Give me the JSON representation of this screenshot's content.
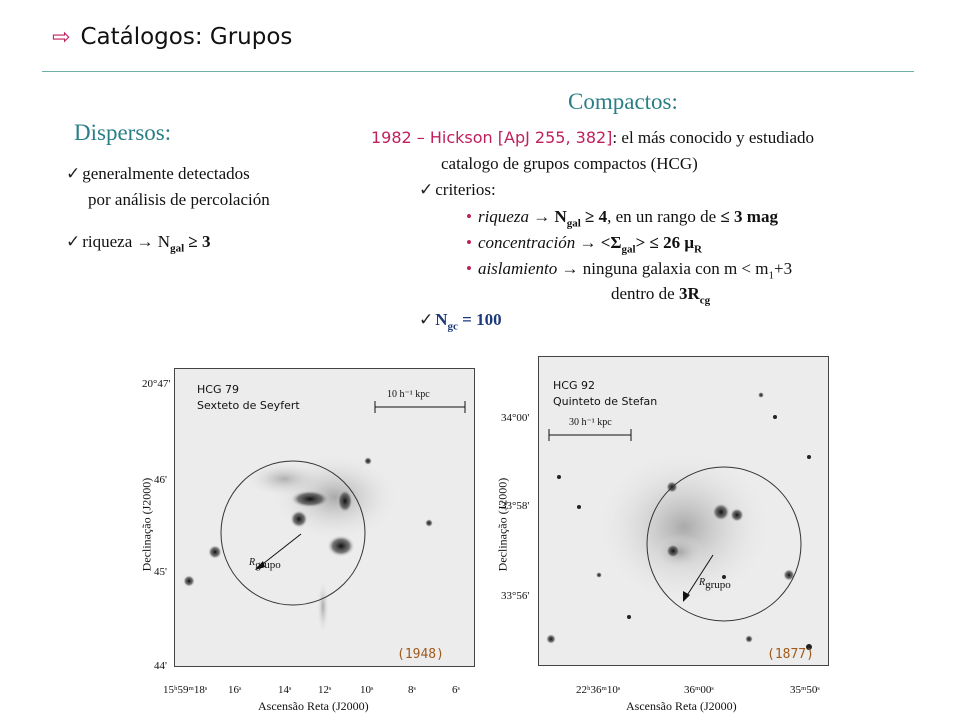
{
  "title": "Catálogos: Grupos",
  "dispersos": {
    "heading": "Dispersos:",
    "item1_line1": "generalmente  detectados",
    "item1_line2": "por análisis de percolación",
    "item2_text": "riqueza  →  N",
    "item2_sub": "gal",
    "item2_rel": " ≥ 3"
  },
  "compactos": {
    "heading": "Compactos:",
    "ref_year": "1982 – Hickson [ApJ 255, 382]",
    "ref_rest": ": el más conocido y estudiado",
    "line2": "catalogo de grupos compactos (HCG)",
    "criterios": "criterios:",
    "riqueza_label": "riqueza →",
    "riqueza_rest_a": " N",
    "riqueza_sub": "gal",
    "riqueza_rest_b": " ≥ 4",
    "riqueza_rest_c": ", en un rango de ",
    "riqueza_rest_d": "≤ 3 mag",
    "conc_label": "concentración →",
    "conc_a": " <Σ",
    "conc_sub": "gal",
    "conc_b": "> ≤ 26 μ",
    "conc_sub2": "R",
    "aisl_label": "aislamiento →",
    "aisl_a": " ninguna galaxia con m < m",
    "aisl_sub": "1",
    "aisl_b": "+3",
    "aisl_line2": "dentro de ",
    "aisl_line2_b": "3R",
    "aisl_line2_sub": "cg",
    "ngc_a": "N",
    "ngc_sub": "gc",
    "ngc_b": " = 100"
  },
  "panel_left": {
    "name": "HCG 79",
    "subname": "Sexteto de Seyfert",
    "scale": "10 h⁻¹ kpc",
    "rgrupo": "R",
    "rgrupo_sub": "grupo",
    "year": "(1948)",
    "yaxis": "Declinação (J2000)",
    "xaxis": "Ascensão Reta (J2000)",
    "yticks": [
      "20°47'",
      "46'",
      "45'",
      "44'"
    ],
    "xticks": [
      "15ʰ59ᵐ18ˢ",
      "16ˢ",
      "14ˢ",
      "12ˢ",
      "10ˢ",
      "8ˢ",
      "6ˢ"
    ]
  },
  "panel_right": {
    "name": "HCG 92",
    "subname": "Quinteto de Stefan",
    "scale": "30 h⁻¹ kpc",
    "rgrupo": "R",
    "rgrupo_sub": "grupo",
    "year": "(1877)",
    "yaxis": "Declinação (J2000)",
    "xaxis": "Ascensão Reta (J2000)",
    "yticks": [
      "34°00'",
      "33°58'",
      "33°56'"
    ],
    "xticks": [
      "22ʰ36ᵐ10ˢ",
      "36ᵐ00ˢ",
      "35ᵐ50ˢ"
    ]
  }
}
